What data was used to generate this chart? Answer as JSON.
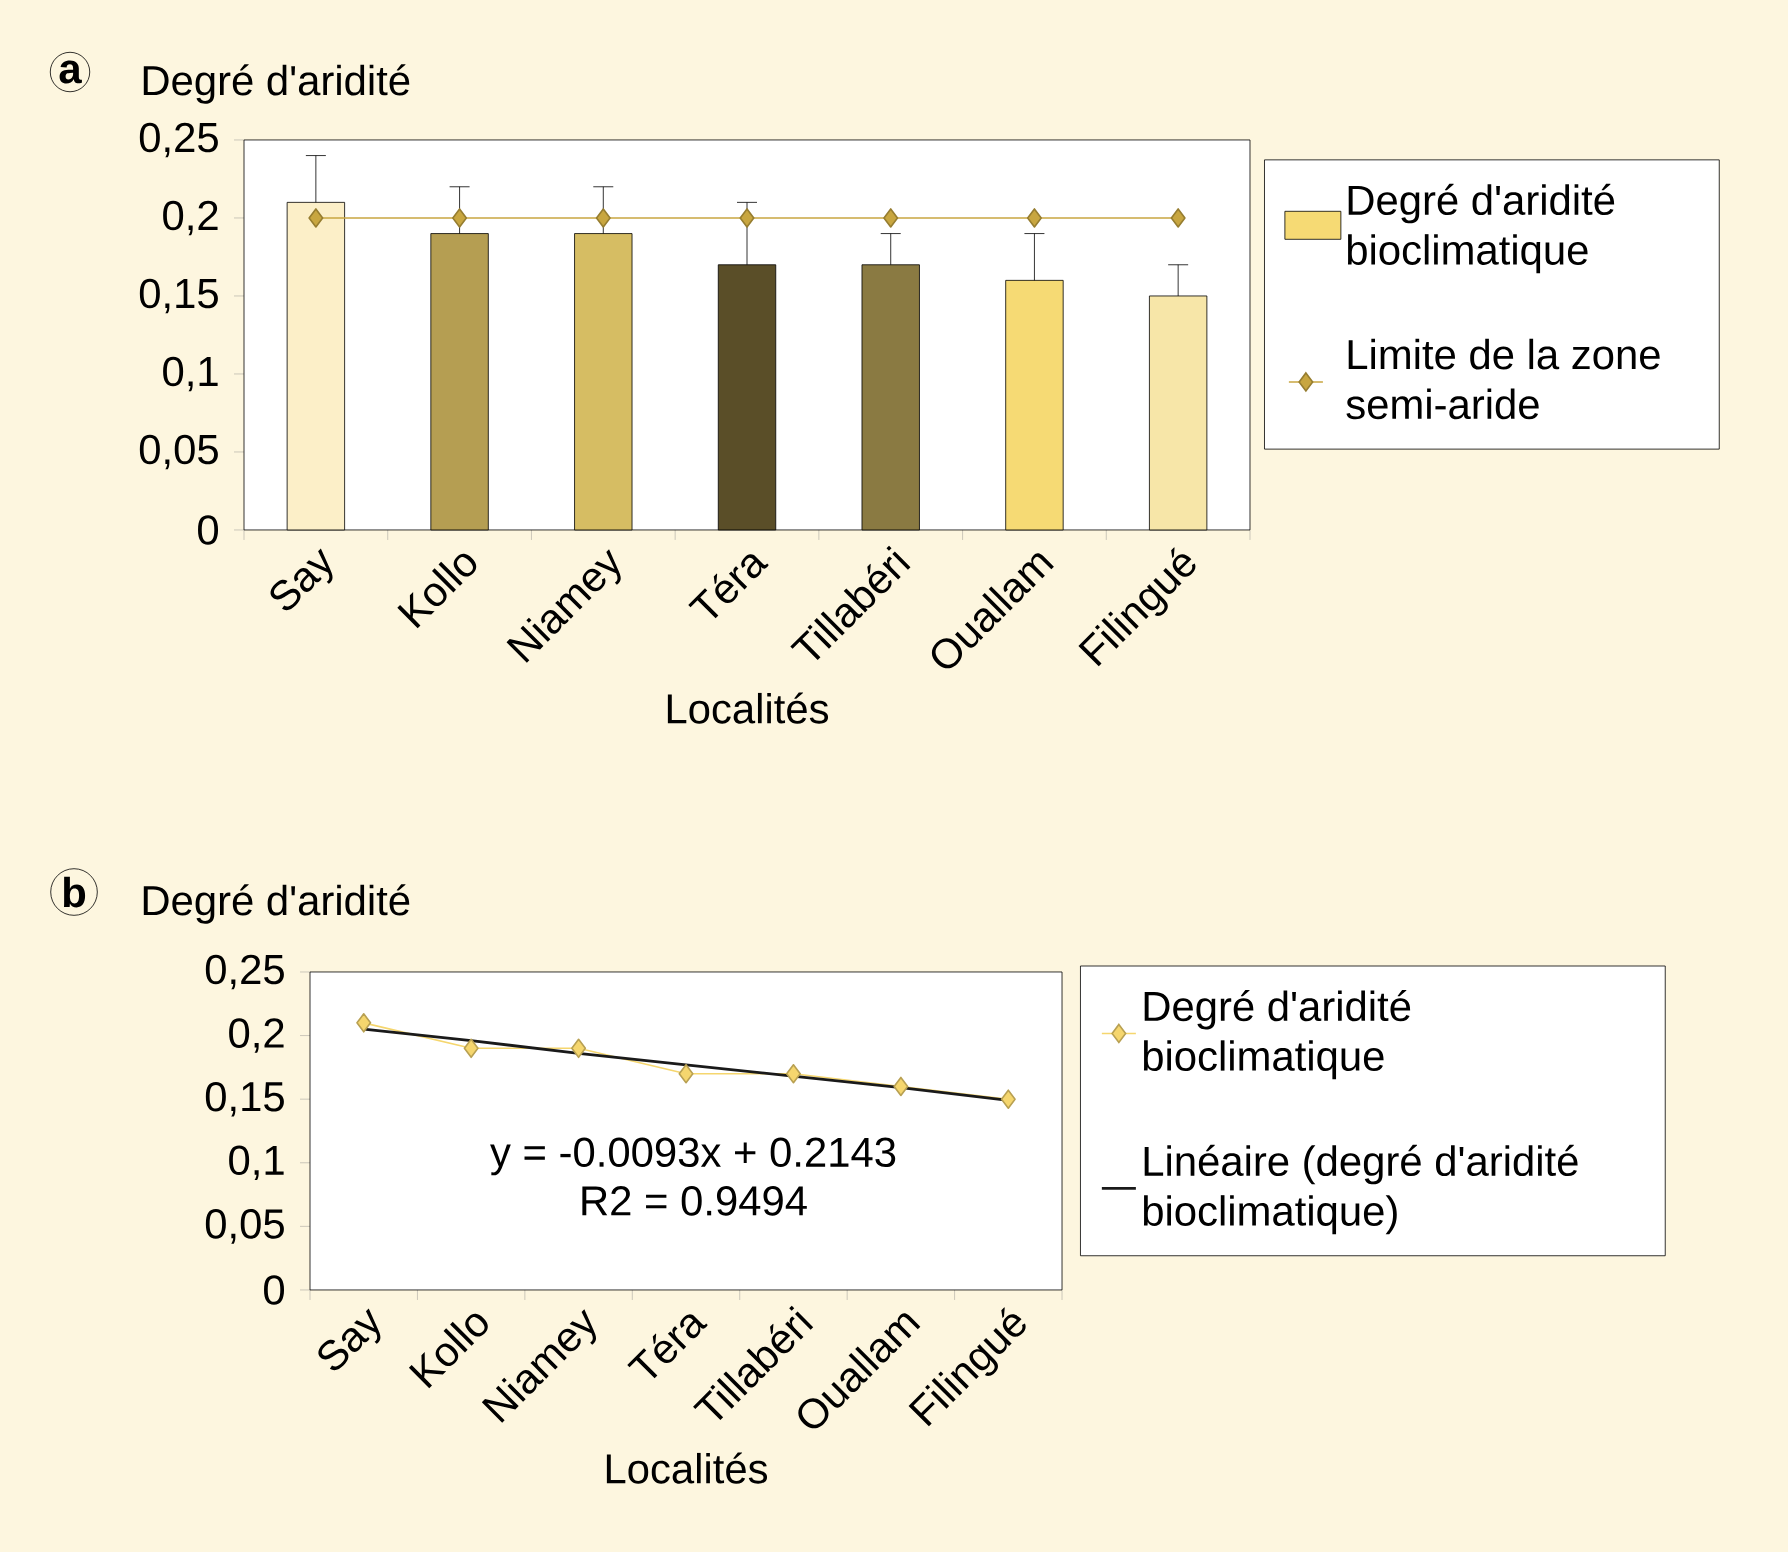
{
  "chart_data": [
    {
      "type": "bar",
      "title": "a",
      "ylabel": "Degré d'aridité",
      "xlabel": "Localités",
      "categories": [
        "Say",
        "Kollo",
        "Niamey",
        "Téra",
        "Tillabéri",
        "Ouallam",
        "Filingué"
      ],
      "series": [
        {
          "name": "Degré d'aridité bioclimatique",
          "color": "#f6da74",
          "colors": [
            "#fcefc8",
            "#b59e52",
            "#d6bd63",
            "#5a4e28",
            "#8a7a42",
            "#f6da74",
            "#f7e6a8"
          ],
          "values": [
            0.21,
            0.19,
            0.19,
            0.17,
            0.17,
            0.16,
            0.15
          ],
          "errors": [
            [
              0.21,
              0.24
            ],
            [
              0.19,
              0.22
            ],
            [
              0.19,
              0.22
            ],
            [
              0.17,
              0.21
            ],
            [
              0.17,
              0.19
            ],
            [
              0.16,
              0.19
            ],
            [
              0.15,
              0.17
            ]
          ]
        },
        {
          "type": "line",
          "name": "Limite de la zone semi-aride",
          "color": "#c8a640",
          "marker": "diamond",
          "values": [
            0.2,
            0.2,
            0.2,
            0.2,
            0.2,
            0.2,
            0.2
          ]
        }
      ],
      "ylim": [
        0,
        0.25
      ],
      "yticks": [
        0,
        {
          "value": 0.05,
          "label": "0,05"
        },
        {
          "value": 0.1,
          "label": "0,1"
        },
        {
          "value": 0.15,
          "label": "0,15"
        },
        {
          "value": 0.2,
          "label": "0,2"
        },
        {
          "value": 0.25,
          "label": "0,25"
        }
      ],
      "legend": "right"
    },
    {
      "type": "line",
      "title": "b",
      "ylabel": "Degré d'aridité",
      "xlabel": "Localités",
      "categories": [
        "Say",
        "Kollo",
        "Niamey",
        "Téra",
        "Tillabéri",
        "Ouallam",
        "Filingué"
      ],
      "series": [
        {
          "name": "Degré d'aridité bioclimatique",
          "color": "#f5d66e",
          "marker": "diamond",
          "values": [
            0.21,
            0.19,
            0.19,
            0.17,
            0.17,
            0.16,
            0.15
          ]
        },
        {
          "name": "Linéaire (degré d'aridité bioclimatique)",
          "color": "#1a1a1a",
          "marker": "none",
          "values": [
            0.205,
            0.196,
            0.186,
            0.177,
            0.168,
            0.159,
            0.149
          ]
        }
      ],
      "ylim": [
        0,
        0.25
      ],
      "yticks": [
        0,
        {
          "value": 0.05,
          "label": "0,05"
        },
        {
          "value": 0.1,
          "label": "0,1"
        },
        {
          "value": 0.15,
          "label": "0,15"
        },
        {
          "value": 0.2,
          "label": "0,2"
        },
        {
          "value": 0.25,
          "label": "0,25"
        }
      ],
      "annotations": [
        "y = -0.0093x + 0.2143",
        "R2 = 0.9494"
      ],
      "legend": "right"
    }
  ]
}
